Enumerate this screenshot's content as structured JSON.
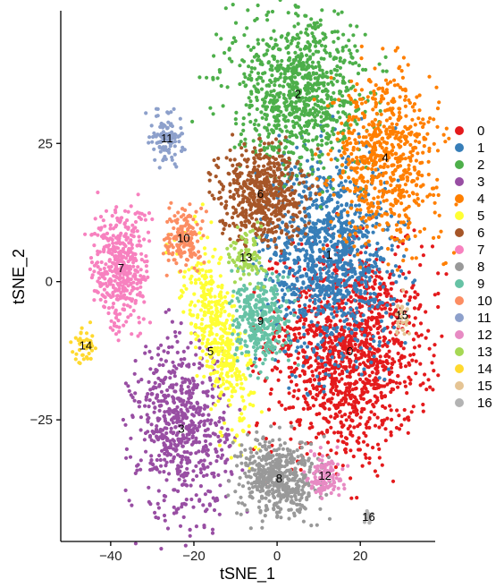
{
  "chart_data": {
    "type": "scatter",
    "title": "",
    "xlabel": "tSNE_1",
    "ylabel": "tSNE_2",
    "xlim": [
      -52,
      38
    ],
    "ylim": [
      -47,
      49
    ],
    "xticks": [
      -40,
      -20,
      0,
      20
    ],
    "xtick_labels": [
      "−40",
      "−20",
      "0",
      "20"
    ],
    "yticks": [
      -25,
      0,
      25
    ],
    "ytick_labels": [
      "−25",
      "0",
      "25"
    ],
    "grid": false,
    "legend_position": "right",
    "clusters": [
      {
        "name": "0",
        "color": "#E41A1C",
        "label_x": 17.5,
        "label_y": -12.5
      },
      {
        "name": "1",
        "color": "#377EB8",
        "label_x": 12.5,
        "label_y": 5
      },
      {
        "name": "2",
        "color": "#4DAF4A",
        "label_x": 5,
        "label_y": 34
      },
      {
        "name": "3",
        "color": "#984EA3",
        "label_x": -23,
        "label_y": -26.5
      },
      {
        "name": "4",
        "color": "#FF7F00",
        "label_x": 26,
        "label_y": 22.5
      },
      {
        "name": "5",
        "color": "#FFFF33",
        "label_x": -16,
        "label_y": -12.5
      },
      {
        "name": "6",
        "color": "#A65628",
        "label_x": -4,
        "label_y": 16
      },
      {
        "name": "7",
        "color": "#F781BF",
        "label_x": -37.5,
        "label_y": 2.5
      },
      {
        "name": "8",
        "color": "#999999",
        "label_x": 0.5,
        "label_y": -35.5
      },
      {
        "name": "9",
        "color": "#66C2A5",
        "label_x": -4,
        "label_y": -7
      },
      {
        "name": "10",
        "color": "#FC8D62",
        "label_x": -22.5,
        "label_y": 8
      },
      {
        "name": "11",
        "color": "#8DA0CB",
        "label_x": -26.5,
        "label_y": 26
      },
      {
        "name": "12",
        "color": "#E78AC3",
        "label_x": 11.5,
        "label_y": -35
      },
      {
        "name": "13",
        "color": "#A6D854",
        "label_x": -7.5,
        "label_y": 4.5
      },
      {
        "name": "14",
        "color": "#FFD92F",
        "label_x": -46,
        "label_y": -11.5
      },
      {
        "name": "15",
        "color": "#E5C494",
        "label_x": 30,
        "label_y": -6
      },
      {
        "name": "16",
        "color": "#B3B3B3",
        "label_x": 22,
        "label_y": -42.5
      }
    ]
  }
}
